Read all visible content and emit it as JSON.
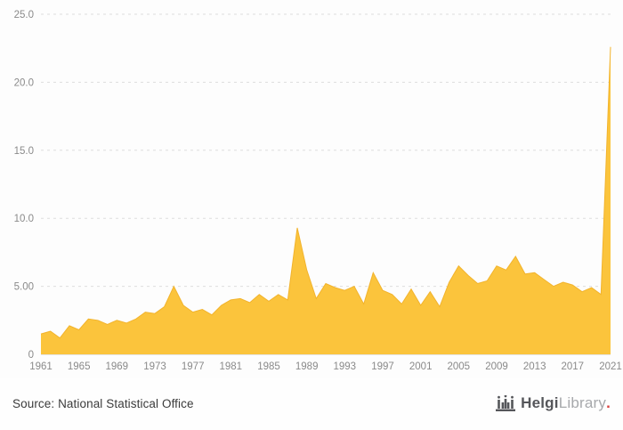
{
  "chart_data": {
    "type": "area",
    "title": "",
    "xlabel": "",
    "ylabel": "",
    "x": [
      1961,
      1962,
      1963,
      1964,
      1965,
      1966,
      1967,
      1968,
      1969,
      1970,
      1971,
      1972,
      1973,
      1974,
      1975,
      1976,
      1977,
      1978,
      1979,
      1980,
      1981,
      1982,
      1983,
      1984,
      1985,
      1986,
      1987,
      1988,
      1989,
      1990,
      1991,
      1992,
      1993,
      1994,
      1995,
      1996,
      1997,
      1998,
      1999,
      2000,
      2001,
      2002,
      2003,
      2004,
      2005,
      2006,
      2007,
      2008,
      2009,
      2010,
      2011,
      2012,
      2013,
      2014,
      2015,
      2016,
      2017,
      2018,
      2019,
      2020,
      2021
    ],
    "values": [
      1.5,
      1.7,
      1.2,
      2.1,
      1.8,
      2.6,
      2.5,
      2.2,
      2.5,
      2.3,
      2.6,
      3.1,
      3.0,
      3.5,
      5.0,
      3.6,
      3.1,
      3.3,
      2.9,
      3.6,
      4.0,
      4.1,
      3.8,
      4.4,
      3.9,
      4.4,
      4.0,
      9.3,
      6.2,
      4.1,
      5.2,
      4.9,
      4.7,
      5.0,
      3.7,
      6.0,
      4.7,
      4.4,
      3.7,
      4.8,
      3.6,
      4.6,
      3.5,
      5.3,
      6.5,
      5.8,
      5.2,
      5.4,
      6.5,
      6.2,
      7.2,
      5.9,
      6.0,
      5.5,
      5.0,
      5.3,
      5.1,
      4.6,
      4.9,
      4.4,
      22.6
    ],
    "ylim": [
      0,
      25
    ],
    "y_ticks": [
      0,
      5,
      10,
      15,
      20,
      25
    ],
    "y_tick_labels": [
      "0",
      "5.00",
      "10.0",
      "15.0",
      "20.0",
      "25.0"
    ],
    "x_tick_labels": [
      "1961",
      "1965",
      "1969",
      "1973",
      "1977",
      "1981",
      "1985",
      "1989",
      "1993",
      "1997",
      "2001",
      "2005",
      "2009",
      "2013",
      "2017",
      "2021"
    ],
    "grid": "horizontal-dashed",
    "legend": "none",
    "fill_color": "#FBC43C",
    "line_color": "#F2B32C",
    "grid_color": "#DDDDDD",
    "axis_line_color": "#CCCCCC",
    "axis_text_color": "#8A8A8A"
  },
  "footer": {
    "source": "Source: National Statistical Office",
    "logo": {
      "primary": "Helgi",
      "secondary": "Library",
      "dot": "."
    }
  }
}
